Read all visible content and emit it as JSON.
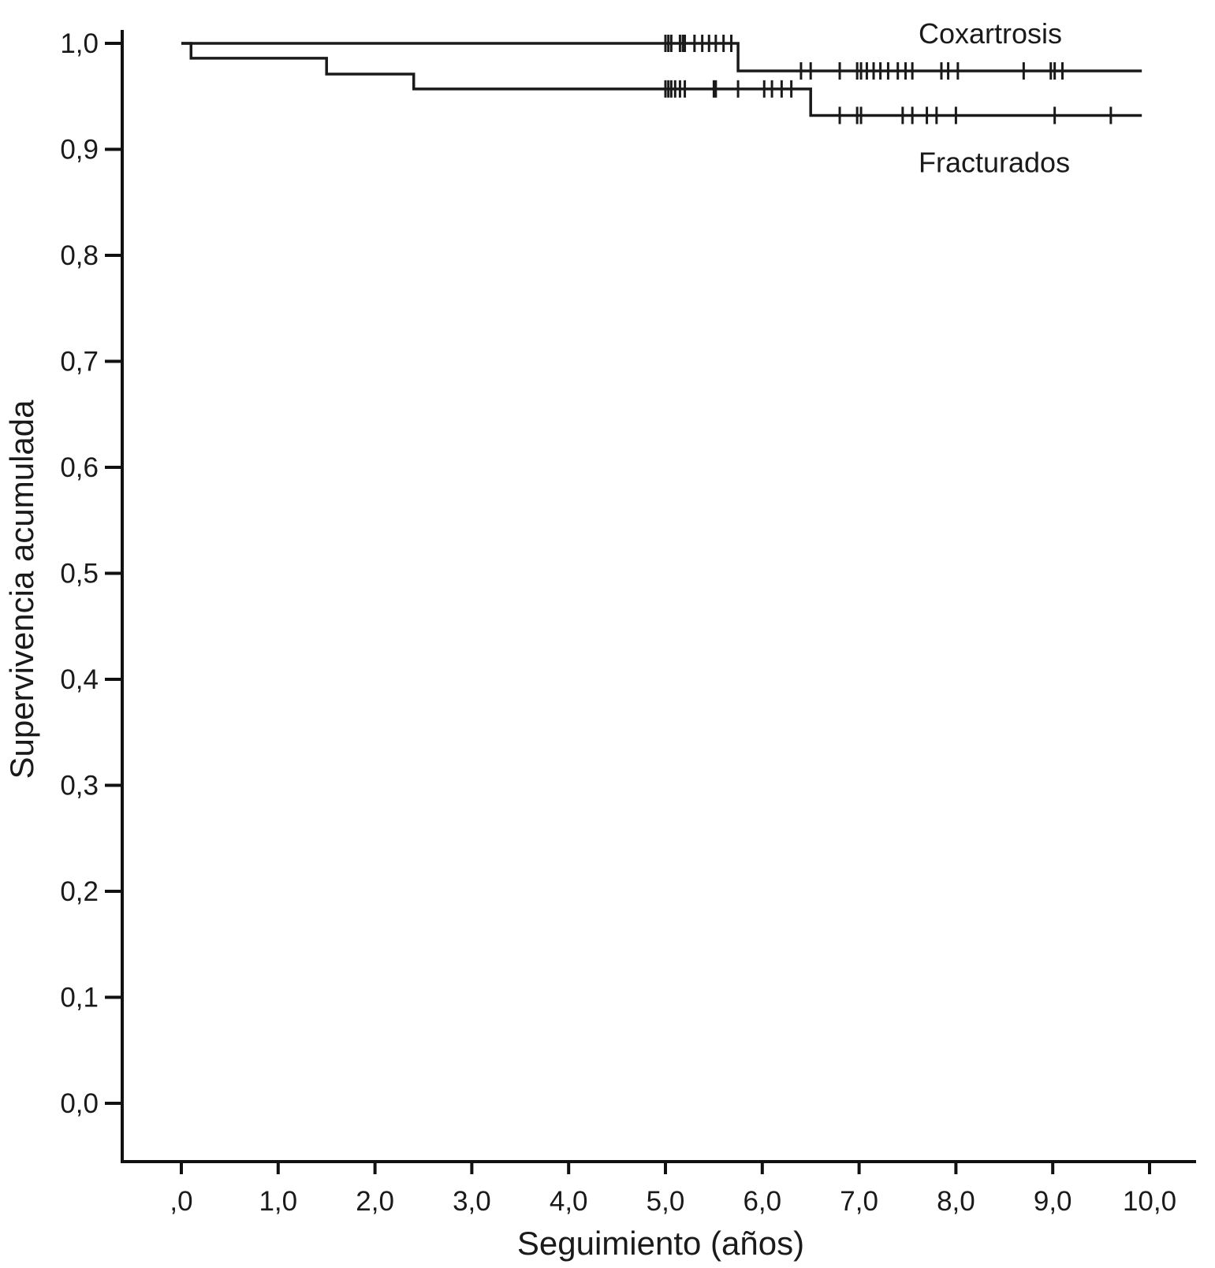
{
  "chart_data": {
    "type": "line",
    "subtype": "kaplan-meier-step",
    "title": "",
    "xlabel": "Seguimiento (años)",
    "ylabel": "Supervivencia acumulada",
    "xlim": [
      -0.6,
      10.5
    ],
    "ylim": [
      -0.055,
      1.02
    ],
    "x_ticks": [
      {
        "value": 0,
        "label": ",0"
      },
      {
        "value": 1,
        "label": "1,0"
      },
      {
        "value": 2,
        "label": "2,0"
      },
      {
        "value": 3,
        "label": "3,0"
      },
      {
        "value": 4,
        "label": "4,0"
      },
      {
        "value": 5,
        "label": "5,0"
      },
      {
        "value": 6,
        "label": "6,0"
      },
      {
        "value": 7,
        "label": "7,0"
      },
      {
        "value": 8,
        "label": "8,0"
      },
      {
        "value": 9,
        "label": "9,0"
      },
      {
        "value": 10,
        "label": "10,0"
      }
    ],
    "y_ticks": [
      {
        "value": 0.0,
        "label": "0,0"
      },
      {
        "value": 0.1,
        "label": "0,1"
      },
      {
        "value": 0.2,
        "label": "0,2"
      },
      {
        "value": 0.3,
        "label": "0,3"
      },
      {
        "value": 0.4,
        "label": "0,4"
      },
      {
        "value": 0.5,
        "label": "0,5"
      },
      {
        "value": 0.6,
        "label": "0,6"
      },
      {
        "value": 0.7,
        "label": "0,7"
      },
      {
        "value": 0.8,
        "label": "0,8"
      },
      {
        "value": 0.9,
        "label": "0,9"
      },
      {
        "value": 1.0,
        "label": "1,0"
      }
    ],
    "grid": false,
    "series": [
      {
        "name": "Coxartrosis",
        "color": "#1a1a1a",
        "label_position": "above",
        "steps": [
          [
            0,
            1.0
          ],
          [
            5.75,
            0.974
          ],
          [
            9.92,
            0.974
          ]
        ],
        "censored": [
          5.0,
          5.03,
          5.06,
          5.15,
          5.18,
          5.2,
          5.3,
          5.38,
          5.45,
          5.52,
          5.6,
          5.68,
          6.4,
          6.5,
          6.8,
          6.98,
          7.02,
          7.08,
          7.15,
          7.22,
          7.3,
          7.4,
          7.48,
          7.55,
          7.85,
          7.92,
          8.02,
          8.7,
          8.98,
          9.02,
          9.1
        ]
      },
      {
        "name": "Fracturados",
        "color": "#1a1a1a",
        "label_position": "below",
        "steps": [
          [
            0,
            1.0
          ],
          [
            0.1,
            0.986
          ],
          [
            1.5,
            0.971
          ],
          [
            2.4,
            0.957
          ],
          [
            6.5,
            0.932
          ],
          [
            9.92,
            0.932
          ]
        ],
        "censored": [
          5.0,
          5.03,
          5.06,
          5.1,
          5.15,
          5.2,
          5.5,
          5.52,
          5.75,
          6.02,
          6.1,
          6.2,
          6.3,
          6.8,
          6.98,
          7.02,
          7.45,
          7.55,
          7.7,
          7.8,
          8.0,
          9.02,
          9.6
        ]
      }
    ]
  }
}
